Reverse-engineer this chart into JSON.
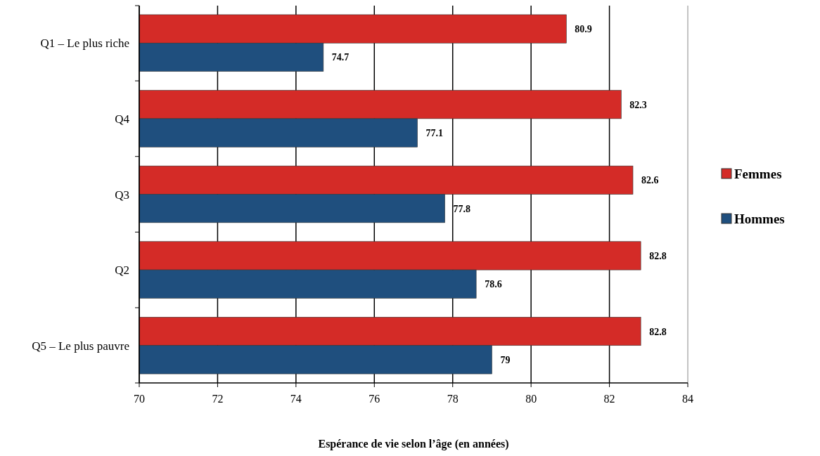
{
  "chart_data": {
    "type": "bar",
    "orientation": "horizontal",
    "xlabel": "Espérance de vie selon l’âge (en années)",
    "categories": [
      "Q1 – Le plus riche",
      "Q4",
      "Q3",
      "Q2",
      "Q5 – Le plus pauvre"
    ],
    "series": [
      {
        "name": "Femmes",
        "color": "#d42b27",
        "values": [
          80.9,
          82.3,
          82.6,
          82.8,
          82.8
        ]
      },
      {
        "name": "Hommes",
        "color": "#1f4f7e",
        "values": [
          74.7,
          77.1,
          77.8,
          78.6,
          79
        ]
      }
    ],
    "xlim": [
      70,
      84
    ],
    "xticks": [
      70,
      72,
      74,
      76,
      78,
      80,
      82,
      84
    ],
    "grid": "x",
    "legend": "right",
    "data_labels": true
  }
}
